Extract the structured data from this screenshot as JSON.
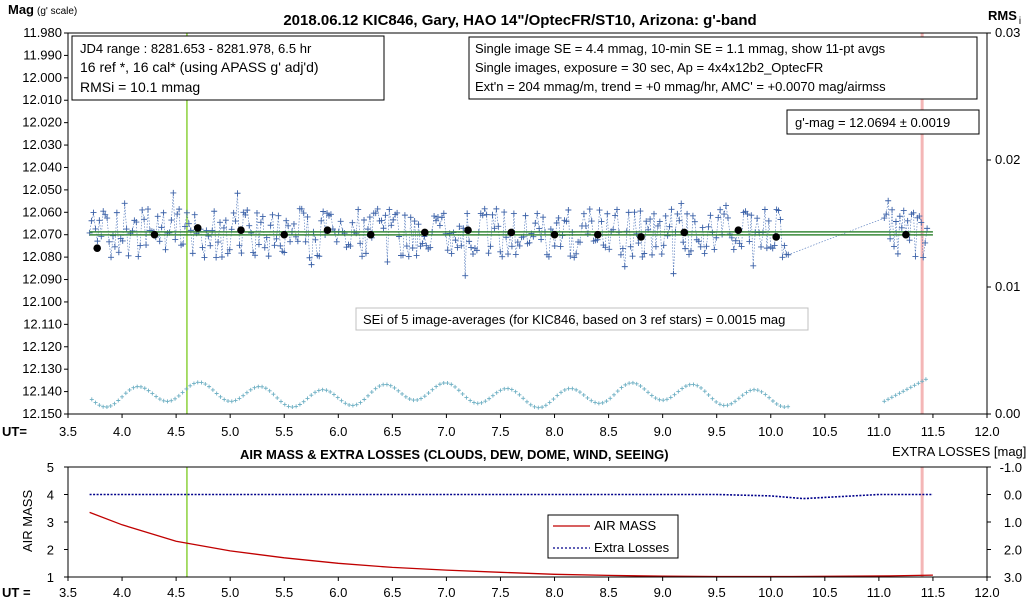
{
  "chart_data": [
    {
      "type": "scatter",
      "title": "2018.06.12  KIC846,  Gary, HAO 14\"/OptecFR/ST10,  Arizona:  g'-band",
      "ylabel_main": "Mag",
      "ylabel_sub": "(g' scale)",
      "y2label_main": "RMS",
      "y2label_sub": "i",
      "xlabel": "UT=",
      "xlim": [
        3.5,
        12.0
      ],
      "ylim": [
        11.98,
        12.15
      ],
      "y_reversed": true,
      "y2lim": [
        0.0,
        0.03
      ],
      "x_ticks": [
        "3.5",
        "4.0",
        "4.5",
        "5.0",
        "5.5",
        "6.0",
        "6.5",
        "7.0",
        "7.5",
        "8.0",
        "8.5",
        "9.0",
        "9.5",
        "10.0",
        "10.5",
        "11.0",
        "11.5",
        "12.0"
      ],
      "y_ticks": [
        "11.980",
        "11.990",
        "12.000",
        "12.010",
        "12.020",
        "12.030",
        "12.040",
        "12.050",
        "12.060",
        "12.070",
        "12.080",
        "12.090",
        "12.100",
        "12.110",
        "12.120",
        "12.130",
        "12.140",
        "12.150"
      ],
      "y2_ticks": [
        "0.03",
        "0.02",
        "0.01",
        "0.00"
      ],
      "fit_level": 12.0694,
      "vertical_lines": [
        {
          "x": 4.6,
          "color": "#8cd13c"
        },
        {
          "x": 11.4,
          "color": "#f4b6b6"
        }
      ],
      "series": [
        {
          "name": "11-pt avgs",
          "color": "#000000",
          "x": [
            3.77,
            4.3,
            4.7,
            5.1,
            5.5,
            5.9,
            6.3,
            6.8,
            7.2,
            7.6,
            8.0,
            8.4,
            8.8,
            9.2,
            9.7,
            10.05,
            11.25
          ],
          "y": [
            12.076,
            12.07,
            12.067,
            12.068,
            12.07,
            12.068,
            12.07,
            12.069,
            12.068,
            12.069,
            12.07,
            12.07,
            12.071,
            12.069,
            12.068,
            12.071,
            12.07
          ]
        }
      ],
      "annotations": {
        "box_left": [
          "JD4 range : 8281.653 - 8281.978,  6.5  hr",
          "16 ref *,  16 cal* (using APASS g' adj'd)",
          "RMSi = 10.1 mmag"
        ],
        "box_right": [
          "Single image SE = 4.4 mmag, 10-min SE = 1.1 mmag, show  11-pt avgs",
          "Single images, exposure = 30 sec, Ap = 4x4x12b2_OptecFR",
          "Ext'n = 204 mmag/m, trend =  +0 mmag/hr, AMC' = +0.0070 mag/airmss"
        ],
        "gmag": "g'-mag = 12.0694 ± 0.0019",
        "sei": "SEi of 5 image-averages (for KIC846, based on 3 ref stars) = 0.0015  mag"
      }
    },
    {
      "type": "line",
      "title": "AIR MASS & EXTRA LOSSES (CLOUDS, DEW, DOME, WIND, SEEING)",
      "ylabel": "AIR MASS",
      "y2label": "EXTRA LOSSES [mag]",
      "xlabel": "UT =",
      "xlim": [
        3.5,
        12.0
      ],
      "ylim": [
        1,
        5
      ],
      "y2lim": [
        -1.0,
        3.0
      ],
      "y2_reversed": true,
      "x_ticks": [
        "3.5",
        "4.0",
        "4.5",
        "5.0",
        "5.5",
        "6.0",
        "6.5",
        "7.0",
        "7.5",
        "8.0",
        "8.5",
        "9.0",
        "9.5",
        "10.0",
        "10.5",
        "11.0",
        "11.5",
        "12.0"
      ],
      "y_ticks": [
        "5",
        "4",
        "3",
        "2",
        "1"
      ],
      "y2_ticks": [
        "-1.0",
        "0.0",
        "1.0",
        "2.0",
        "3.0"
      ],
      "series": [
        {
          "name": "AIR MASS",
          "color": "#c00000",
          "x": [
            3.7,
            4.0,
            4.5,
            5.0,
            5.5,
            6.0,
            6.5,
            7.0,
            7.5,
            8.0,
            8.5,
            9.0,
            9.5,
            10.0,
            10.2,
            11.1,
            11.5
          ],
          "y": [
            3.35,
            2.9,
            2.3,
            1.95,
            1.7,
            1.5,
            1.35,
            1.25,
            1.17,
            1.1,
            1.06,
            1.03,
            1.02,
            1.02,
            1.02,
            1.04,
            1.07
          ]
        },
        {
          "name": "Extra Losses",
          "color": "#00008b",
          "x": [
            3.7,
            4.5,
            5.5,
            6.5,
            7.5,
            8.5,
            9.5,
            10.0,
            10.3,
            11.0,
            11.5
          ],
          "y": [
            0.0,
            0.0,
            0.0,
            0.0,
            0.0,
            0.0,
            0.0,
            0.05,
            0.15,
            0.0,
            0.0
          ]
        }
      ],
      "vertical_lines": [
        {
          "x": 4.6,
          "color": "#8cd13c"
        },
        {
          "x": 11.4,
          "color": "#f4b6b6"
        }
      ]
    }
  ]
}
